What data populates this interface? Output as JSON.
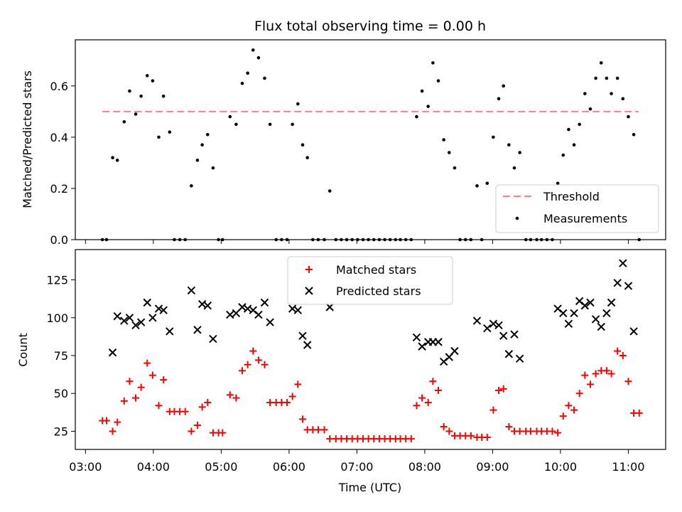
{
  "chart_data": [
    {
      "type": "scatter",
      "title": "Flux total observing time = 0.00 h",
      "ylabel": "Matched/Predicted stars",
      "xlabel": "",
      "ylim": [
        0,
        0.78
      ],
      "yticks": [
        "0.0",
        "0.2",
        "0.4",
        "0.6"
      ],
      "legend_position": "lower-right",
      "threshold": {
        "name": "Threshold",
        "value": 0.5,
        "color": "#ff7f7f",
        "x_start": 3.25,
        "x_end": 11.15
      },
      "series": [
        {
          "name": "Measurements",
          "color": "#000000",
          "points": [
            [
              3.25,
              0.0
            ],
            [
              3.31,
              0.0
            ],
            [
              3.4,
              0.32
            ],
            [
              3.47,
              0.31
            ],
            [
              3.57,
              0.46
            ],
            [
              3.65,
              0.58
            ],
            [
              3.74,
              0.49
            ],
            [
              3.82,
              0.56
            ],
            [
              3.91,
              0.64
            ],
            [
              3.99,
              0.62
            ],
            [
              4.08,
              0.4
            ],
            [
              4.15,
              0.56
            ],
            [
              4.24,
              0.42
            ],
            [
              4.31,
              0.0
            ],
            [
              4.39,
              0.0
            ],
            [
              4.47,
              0.0
            ],
            [
              4.56,
              0.21
            ],
            [
              4.65,
              0.31
            ],
            [
              4.72,
              0.37
            ],
            [
              4.8,
              0.41
            ],
            [
              4.88,
              0.28
            ],
            [
              4.96,
              0.0
            ],
            [
              5.02,
              0.0
            ],
            [
              5.13,
              0.48
            ],
            [
              5.22,
              0.45
            ],
            [
              5.31,
              0.61
            ],
            [
              5.39,
              0.65
            ],
            [
              5.47,
              0.74
            ],
            [
              5.55,
              0.71
            ],
            [
              5.64,
              0.63
            ],
            [
              5.72,
              0.45
            ],
            [
              5.81,
              0.0
            ],
            [
              5.89,
              0.0
            ],
            [
              5.97,
              0.0
            ],
            [
              6.05,
              0.45
            ],
            [
              6.13,
              0.53
            ],
            [
              6.2,
              0.37
            ],
            [
              6.27,
              0.32
            ],
            [
              6.35,
              0.0
            ],
            [
              6.43,
              0.0
            ],
            [
              6.52,
              0.0
            ],
            [
              6.6,
              0.19
            ],
            [
              6.69,
              0.0
            ],
            [
              6.77,
              0.0
            ],
            [
              6.85,
              0.0
            ],
            [
              6.93,
              0.0
            ],
            [
              7.01,
              0.0
            ],
            [
              7.09,
              0.0
            ],
            [
              7.17,
              0.0
            ],
            [
              7.25,
              0.0
            ],
            [
              7.33,
              0.0
            ],
            [
              7.41,
              0.0
            ],
            [
              7.49,
              0.0
            ],
            [
              7.57,
              0.0
            ],
            [
              7.64,
              0.0
            ],
            [
              7.72,
              0.0
            ],
            [
              7.8,
              0.0
            ],
            [
              7.88,
              0.48
            ],
            [
              7.96,
              0.58
            ],
            [
              8.05,
              0.52
            ],
            [
              8.12,
              0.69
            ],
            [
              8.2,
              0.62
            ],
            [
              8.28,
              0.39
            ],
            [
              8.36,
              0.34
            ],
            [
              8.44,
              0.28
            ],
            [
              8.52,
              0.0
            ],
            [
              8.6,
              0.0
            ],
            [
              8.68,
              0.0
            ],
            [
              8.77,
              0.21
            ],
            [
              8.84,
              0.0
            ],
            [
              8.92,
              0.22
            ],
            [
              9.01,
              0.4
            ],
            [
              9.09,
              0.55
            ],
            [
              9.16,
              0.6
            ],
            [
              9.24,
              0.37
            ],
            [
              9.32,
              0.28
            ],
            [
              9.4,
              0.34
            ],
            [
              9.49,
              0.0
            ],
            [
              9.56,
              0.0
            ],
            [
              9.65,
              0.0
            ],
            [
              9.72,
              0.0
            ],
            [
              9.8,
              0.0
            ],
            [
              9.88,
              0.0
            ],
            [
              9.96,
              0.22
            ],
            [
              10.04,
              0.33
            ],
            [
              10.12,
              0.43
            ],
            [
              10.2,
              0.37
            ],
            [
              10.28,
              0.45
            ],
            [
              10.36,
              0.57
            ],
            [
              10.44,
              0.51
            ],
            [
              10.52,
              0.63
            ],
            [
              10.6,
              0.69
            ],
            [
              10.68,
              0.63
            ],
            [
              10.75,
              0.57
            ],
            [
              10.84,
              0.63
            ],
            [
              10.92,
              0.55
            ],
            [
              11.0,
              0.48
            ],
            [
              11.08,
              0.41
            ],
            [
              11.16,
              0.0
            ]
          ]
        }
      ]
    },
    {
      "type": "scatter",
      "title": "",
      "xlabel": "Time (UTC)",
      "ylabel": "Count",
      "xlim": [
        2.85,
        11.55
      ],
      "ylim": [
        13,
        145
      ],
      "xticks": [
        "03:00",
        "04:00",
        "05:00",
        "06:00",
        "07:00",
        "08:00",
        "09:00",
        "10:00",
        "11:00"
      ],
      "yticks": [
        "25",
        "50",
        "75",
        "100",
        "125"
      ],
      "legend_position": "upper-center",
      "series": [
        {
          "name": "Matched stars",
          "marker": "+",
          "color": "#ff0000",
          "points": [
            [
              3.25,
              32
            ],
            [
              3.31,
              32
            ],
            [
              3.4,
              25
            ],
            [
              3.47,
              31
            ],
            [
              3.57,
              45
            ],
            [
              3.65,
              58
            ],
            [
              3.74,
              47
            ],
            [
              3.82,
              54
            ],
            [
              3.91,
              70
            ],
            [
              3.99,
              62
            ],
            [
              4.08,
              42
            ],
            [
              4.15,
              59
            ],
            [
              4.24,
              38
            ],
            [
              4.31,
              38
            ],
            [
              4.39,
              38
            ],
            [
              4.47,
              38
            ],
            [
              4.56,
              25
            ],
            [
              4.65,
              29
            ],
            [
              4.72,
              41
            ],
            [
              4.8,
              44
            ],
            [
              4.88,
              24
            ],
            [
              4.96,
              24
            ],
            [
              5.02,
              24
            ],
            [
              5.13,
              49
            ],
            [
              5.22,
              47
            ],
            [
              5.31,
              65
            ],
            [
              5.39,
              69
            ],
            [
              5.47,
              78
            ],
            [
              5.55,
              72
            ],
            [
              5.64,
              69
            ],
            [
              5.72,
              44
            ],
            [
              5.81,
              44
            ],
            [
              5.89,
              44
            ],
            [
              5.97,
              44
            ],
            [
              6.05,
              48
            ],
            [
              6.13,
              56
            ],
            [
              6.2,
              33
            ],
            [
              6.27,
              26
            ],
            [
              6.35,
              26
            ],
            [
              6.43,
              26
            ],
            [
              6.52,
              26
            ],
            [
              6.6,
              20
            ],
            [
              6.69,
              20
            ],
            [
              6.77,
              20
            ],
            [
              6.85,
              20
            ],
            [
              6.93,
              20
            ],
            [
              7.01,
              20
            ],
            [
              7.09,
              20
            ],
            [
              7.17,
              20
            ],
            [
              7.25,
              20
            ],
            [
              7.33,
              20
            ],
            [
              7.41,
              20
            ],
            [
              7.49,
              20
            ],
            [
              7.57,
              20
            ],
            [
              7.64,
              20
            ],
            [
              7.72,
              20
            ],
            [
              7.8,
              20
            ],
            [
              7.88,
              42
            ],
            [
              7.96,
              47
            ],
            [
              8.05,
              44
            ],
            [
              8.12,
              58
            ],
            [
              8.2,
              52
            ],
            [
              8.28,
              28
            ],
            [
              8.36,
              25
            ],
            [
              8.44,
              22
            ],
            [
              8.52,
              22
            ],
            [
              8.6,
              22
            ],
            [
              8.68,
              22
            ],
            [
              8.77,
              21
            ],
            [
              8.84,
              21
            ],
            [
              8.92,
              21
            ],
            [
              9.01,
              39
            ],
            [
              9.09,
              52
            ],
            [
              9.16,
              53
            ],
            [
              9.24,
              28
            ],
            [
              9.32,
              25
            ],
            [
              9.4,
              25
            ],
            [
              9.49,
              25
            ],
            [
              9.56,
              25
            ],
            [
              9.65,
              25
            ],
            [
              9.72,
              25
            ],
            [
              9.8,
              25
            ],
            [
              9.88,
              25
            ],
            [
              9.96,
              24
            ],
            [
              10.04,
              35
            ],
            [
              10.12,
              42
            ],
            [
              10.2,
              39
            ],
            [
              10.28,
              50
            ],
            [
              10.36,
              62
            ],
            [
              10.44,
              56
            ],
            [
              10.52,
              63
            ],
            [
              10.6,
              65
            ],
            [
              10.68,
              65
            ],
            [
              10.75,
              63
            ],
            [
              10.84,
              78
            ],
            [
              10.92,
              75
            ],
            [
              11.0,
              58
            ],
            [
              11.08,
              37
            ],
            [
              11.16,
              37
            ]
          ]
        },
        {
          "name": "Predicted stars",
          "marker": "x",
          "color": "#000000",
          "points": [
            [
              3.4,
              77
            ],
            [
              3.47,
              101
            ],
            [
              3.57,
              98
            ],
            [
              3.65,
              100
            ],
            [
              3.74,
              95
            ],
            [
              3.82,
              97
            ],
            [
              3.91,
              110
            ],
            [
              3.99,
              100
            ],
            [
              4.08,
              106
            ],
            [
              4.15,
              105
            ],
            [
              4.24,
              91
            ],
            [
              4.56,
              118
            ],
            [
              4.65,
              92
            ],
            [
              4.72,
              109
            ],
            [
              4.8,
              108
            ],
            [
              4.88,
              86
            ],
            [
              5.13,
              102
            ],
            [
              5.22,
              103
            ],
            [
              5.31,
              107
            ],
            [
              5.39,
              106
            ],
            [
              5.47,
              105
            ],
            [
              5.55,
              102
            ],
            [
              5.64,
              110
            ],
            [
              5.72,
              97
            ],
            [
              6.05,
              106
            ],
            [
              6.13,
              105
            ],
            [
              6.2,
              88
            ],
            [
              6.27,
              82
            ],
            [
              6.6,
              107
            ],
            [
              7.88,
              87
            ],
            [
              7.96,
              81
            ],
            [
              8.05,
              84
            ],
            [
              8.12,
              84
            ],
            [
              8.2,
              84
            ],
            [
              8.28,
              71
            ],
            [
              8.36,
              74
            ],
            [
              8.44,
              78
            ],
            [
              8.77,
              98
            ],
            [
              8.92,
              93
            ],
            [
              9.01,
              96
            ],
            [
              9.09,
              95
            ],
            [
              9.16,
              88
            ],
            [
              9.24,
              76
            ],
            [
              9.32,
              89
            ],
            [
              9.4,
              73
            ],
            [
              9.96,
              106
            ],
            [
              10.04,
              103
            ],
            [
              10.12,
              96
            ],
            [
              10.2,
              103
            ],
            [
              10.28,
              111
            ],
            [
              10.36,
              108
            ],
            [
              10.44,
              110
            ],
            [
              10.52,
              99
            ],
            [
              10.6,
              94
            ],
            [
              10.68,
              103
            ],
            [
              10.75,
              110
            ],
            [
              10.84,
              123
            ],
            [
              10.92,
              136
            ],
            [
              11.0,
              121
            ],
            [
              11.08,
              91
            ]
          ]
        }
      ]
    }
  ]
}
